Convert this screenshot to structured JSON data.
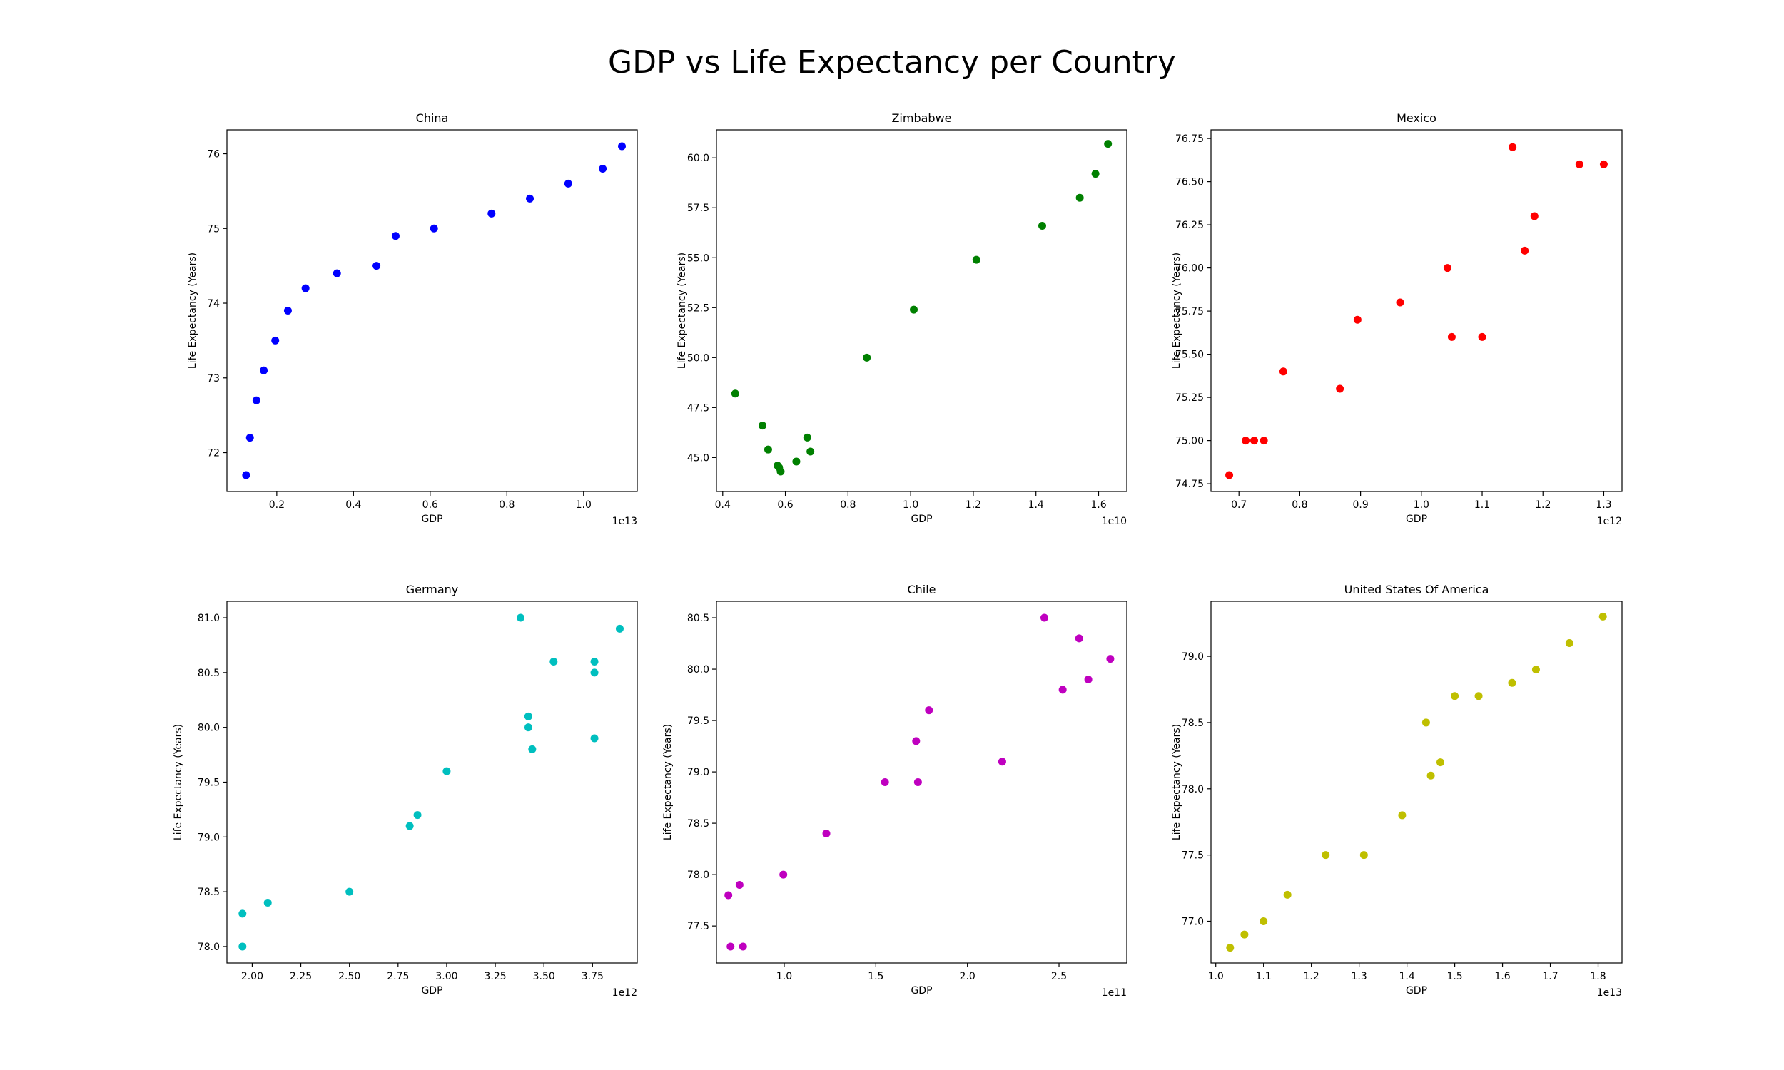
{
  "figure": {
    "title": "GDP vs Life Expectancy per Country"
  },
  "chart_data": [
    {
      "type": "scatter",
      "title": "China",
      "xlabel": "GDP",
      "ylabel": "Life Expectancy (Years)",
      "color": "#0000ff",
      "x_multiplier": "1e13",
      "x_scale": 10000000000000.0,
      "xlim": [
        0.07,
        1.14
      ],
      "ylim": [
        71.48,
        76.32
      ],
      "xticks": [
        0.2,
        0.4,
        0.6,
        0.8,
        1.0
      ],
      "xtick_labels": [
        "0.2",
        "0.4",
        "0.6",
        "0.8",
        "1.0"
      ],
      "yticks": [
        72,
        73,
        74,
        75,
        76
      ],
      "ytick_labels": [
        "72",
        "73",
        "74",
        "75",
        "76"
      ],
      "x": [
        0.12,
        0.13,
        0.147,
        0.166,
        0.196,
        0.229,
        0.275,
        0.357,
        0.46,
        0.51,
        0.61,
        0.76,
        0.86,
        0.96,
        1.05,
        1.1
      ],
      "y": [
        71.7,
        72.2,
        72.7,
        73.1,
        73.5,
        73.9,
        74.2,
        74.4,
        74.5,
        74.9,
        75.0,
        75.2,
        75.4,
        75.6,
        75.8,
        76.1
      ]
    },
    {
      "type": "scatter",
      "title": "Zimbabwe",
      "xlabel": "GDP",
      "ylabel": "Life Expectancy (Years)",
      "color": "#008000",
      "x_multiplier": "1e10",
      "x_scale": 10000000000.0,
      "xlim": [
        0.38,
        1.69
      ],
      "ylim": [
        43.3,
        61.4
      ],
      "xticks": [
        0.4,
        0.6,
        0.8,
        1.0,
        1.2,
        1.4,
        1.6
      ],
      "xtick_labels": [
        "0.4",
        "0.6",
        "0.8",
        "1.0",
        "1.2",
        "1.4",
        "1.6"
      ],
      "yticks": [
        45.0,
        47.5,
        50.0,
        52.5,
        55.0,
        57.5,
        60.0
      ],
      "ytick_labels": [
        "45.0",
        "47.5",
        "50.0",
        "52.5",
        "55.0",
        "57.5",
        "60.0"
      ],
      "x": [
        0.44,
        0.527,
        0.545,
        0.575,
        0.58,
        0.585,
        0.635,
        0.67,
        0.68,
        0.86,
        1.01,
        1.21,
        1.42,
        1.54,
        1.59,
        1.63
      ],
      "y": [
        48.2,
        46.6,
        45.4,
        44.6,
        44.5,
        44.3,
        44.8,
        46.0,
        45.3,
        50.0,
        52.4,
        54.9,
        56.6,
        58.0,
        59.2,
        60.7
      ]
    },
    {
      "type": "scatter",
      "title": "Mexico",
      "xlabel": "GDP",
      "ylabel": "Life Expectancy (Years)",
      "color": "#ff0000",
      "x_multiplier": "1e12",
      "x_scale": 1000000000000.0,
      "xlim": [
        0.654,
        1.33
      ],
      "ylim": [
        74.705,
        76.8
      ],
      "xticks": [
        0.7,
        0.8,
        0.9,
        1.0,
        1.1,
        1.2,
        1.3
      ],
      "xtick_labels": [
        "0.7",
        "0.8",
        "0.9",
        "1.0",
        "1.1",
        "1.2",
        "1.3"
      ],
      "yticks": [
        74.75,
        75.0,
        75.25,
        75.5,
        75.75,
        76.0,
        76.25,
        76.5,
        76.75
      ],
      "ytick_labels": [
        "74.75",
        "75.00",
        "75.25",
        "75.50",
        "75.75",
        "76.00",
        "76.25",
        "76.50",
        "76.75"
      ],
      "x": [
        0.684,
        0.711,
        0.725,
        0.741,
        0.773,
        0.866,
        0.895,
        0.965,
        1.043,
        1.05,
        1.1,
        1.15,
        1.17,
        1.186,
        1.26,
        1.3
      ],
      "y": [
        74.8,
        75.0,
        75.0,
        75.0,
        75.4,
        75.3,
        75.7,
        75.8,
        76.0,
        75.6,
        75.6,
        76.7,
        76.1,
        76.3,
        76.6,
        76.6
      ]
    },
    {
      "type": "scatter",
      "title": "Germany",
      "xlabel": "GDP",
      "ylabel": "Life Expectancy (Years)",
      "color": "#00bfbf",
      "x_multiplier": "1e12",
      "x_scale": 1000000000000.0,
      "xlim": [
        1.87,
        3.98
      ],
      "ylim": [
        77.85,
        81.15
      ],
      "xticks": [
        2.0,
        2.25,
        2.5,
        2.75,
        3.0,
        3.25,
        3.5,
        3.75
      ],
      "xtick_labels": [
        "2.00",
        "2.25",
        "2.50",
        "2.75",
        "3.00",
        "3.25",
        "3.50",
        "3.75"
      ],
      "yticks": [
        78.0,
        78.5,
        79.0,
        79.5,
        80.0,
        80.5,
        81.0
      ],
      "ytick_labels": [
        "78.0",
        "78.5",
        "79.0",
        "79.5",
        "80.0",
        "80.5",
        "81.0"
      ],
      "x": [
        1.95,
        1.95,
        2.08,
        2.5,
        2.81,
        2.85,
        3.0,
        3.38,
        3.42,
        3.42,
        3.44,
        3.55,
        3.76,
        3.76,
        3.76,
        3.89
      ],
      "y": [
        78.0,
        78.3,
        78.4,
        78.5,
        79.1,
        79.2,
        79.6,
        81.0,
        80.1,
        80.0,
        79.8,
        80.6,
        80.6,
        80.5,
        79.9,
        80.9
      ]
    },
    {
      "type": "scatter",
      "title": "Chile",
      "xlabel": "GDP",
      "ylabel": "Life Expectancy (Years)",
      "color": "#bf00bf",
      "x_multiplier": "1e11",
      "x_scale": 100000000000.0,
      "xlim": [
        0.63,
        2.87
      ],
      "ylim": [
        77.14,
        80.66
      ],
      "xticks": [
        1.0,
        1.5,
        2.0,
        2.5
      ],
      "xtick_labels": [
        "1.0",
        "1.5",
        "2.0",
        "2.5"
      ],
      "yticks": [
        77.5,
        78.0,
        78.5,
        79.0,
        79.5,
        80.0,
        80.5
      ],
      "ytick_labels": [
        "77.5",
        "78.0",
        "78.5",
        "79.0",
        "79.5",
        "80.0",
        "80.5"
      ],
      "x": [
        0.695,
        0.707,
        0.756,
        0.775,
        0.995,
        1.23,
        1.55,
        1.72,
        1.73,
        1.79,
        2.19,
        2.42,
        2.52,
        2.61,
        2.66,
        2.78
      ],
      "y": [
        77.8,
        77.3,
        77.9,
        77.3,
        78.0,
        78.4,
        78.9,
        79.3,
        78.9,
        79.6,
        79.1,
        80.5,
        79.8,
        80.3,
        79.9,
        80.1
      ]
    },
    {
      "type": "scatter",
      "title": "United States Of America",
      "xlabel": "GDP",
      "ylabel": "Life Expectancy (Years)",
      "color": "#bfbf00",
      "x_multiplier": "1e13",
      "x_scale": 10000000000000.0,
      "xlim": [
        0.99,
        1.85
      ],
      "ylim": [
        76.685,
        79.415
      ],
      "xticks": [
        1.0,
        1.1,
        1.2,
        1.3,
        1.4,
        1.5,
        1.6,
        1.7,
        1.8
      ],
      "xtick_labels": [
        "1.0",
        "1.1",
        "1.2",
        "1.3",
        "1.4",
        "1.5",
        "1.6",
        "1.7",
        "1.8"
      ],
      "yticks": [
        77.0,
        77.5,
        78.0,
        78.5,
        79.0
      ],
      "ytick_labels": [
        "77.0",
        "77.5",
        "78.0",
        "78.5",
        "79.0"
      ],
      "x": [
        1.03,
        1.06,
        1.1,
        1.15,
        1.23,
        1.31,
        1.39,
        1.44,
        1.45,
        1.47,
        1.5,
        1.55,
        1.62,
        1.67,
        1.74,
        1.81
      ],
      "y": [
        76.8,
        76.9,
        77.0,
        77.2,
        77.5,
        77.5,
        77.8,
        78.5,
        78.1,
        78.2,
        78.7,
        78.7,
        78.8,
        78.9,
        79.1,
        79.3
      ]
    }
  ]
}
